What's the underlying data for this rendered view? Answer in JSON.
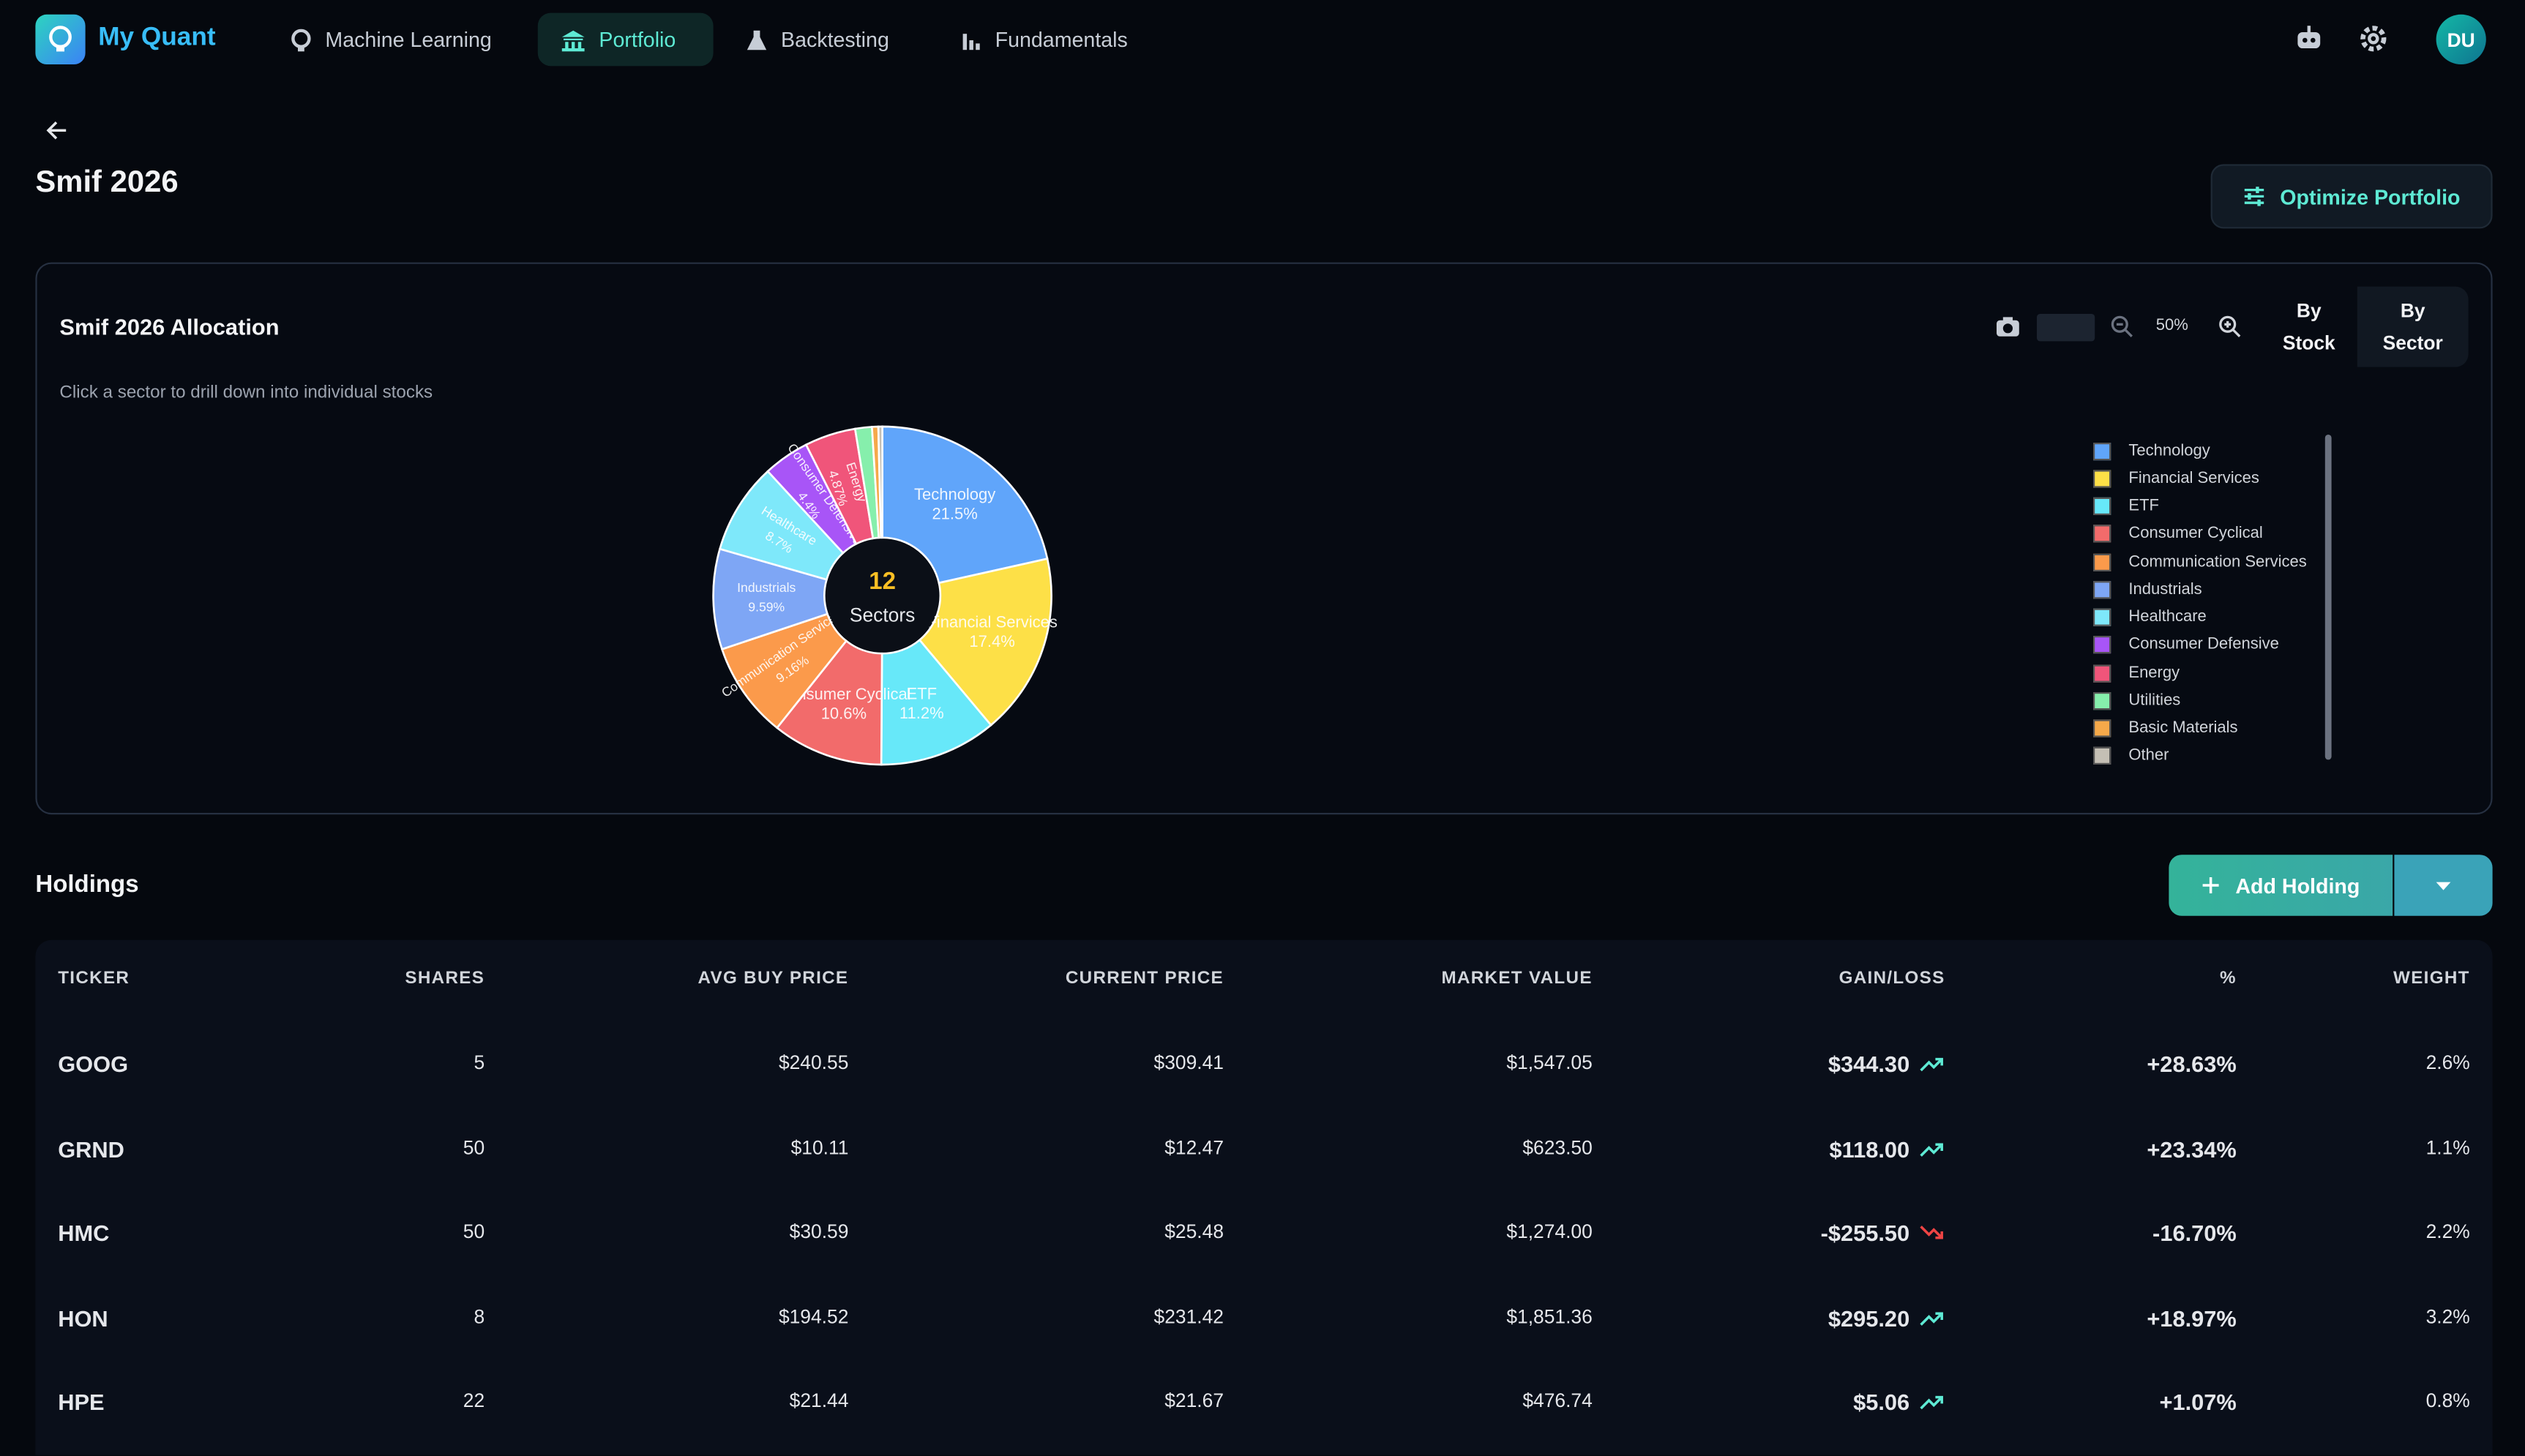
{
  "nav": {
    "brand": "My Quant",
    "items": [
      "Machine Learning",
      "Portfolio",
      "Backtesting",
      "Fundamentals"
    ],
    "avatar": "DU"
  },
  "header": {
    "title": "Smif 2026",
    "button": "Optimize Portfolio"
  },
  "allocation": {
    "title": "Smif 2026 Allocation",
    "hint": "Click a sector to drill down into individual stocks",
    "zoom": "50%",
    "toggles": [
      "By Stock",
      "By Sector"
    ]
  },
  "chart_data": {
    "type": "pie",
    "categories": [
      "Technology",
      "Financial Services",
      "ETF",
      "Consumer Cyclical",
      "Communication Services",
      "Industrials",
      "Healthcare",
      "Consumer Defensive",
      "Energy",
      "Utilities",
      "Basic Materials",
      "Other"
    ],
    "values": [
      21.5,
      17.4,
      11.2,
      10.6,
      9.16,
      9.59,
      8.7,
      4.4,
      4.87,
      1.6,
      0.6,
      0.38
    ],
    "value_labels": [
      "21.5%",
      "17.4%",
      "11.2%",
      "10.6%",
      "9.16%",
      "9.59%",
      "8.7%",
      "4.4%",
      "4.87%",
      null,
      null,
      null
    ],
    "colors": [
      "#60a5fa",
      "#fde047",
      "#67e8f9",
      "#f26b6b",
      "#fb9a4b",
      "#7ea6f5",
      "#7ee8fa",
      "#a855f7",
      "#f0557a",
      "#86efac",
      "#f5a94a",
      "#c4bfb5"
    ],
    "center_value": 12,
    "center_label": "Sectors"
  },
  "holdings": {
    "title": "Holdings",
    "add_button": "Add Holding",
    "columns": [
      "TICKER",
      "SHARES",
      "AVG BUY PRICE",
      "CURRENT PRICE",
      "MARKET VALUE",
      "GAIN/LOSS",
      "%",
      "WEIGHT"
    ],
    "rows": [
      [
        "GOOG",
        "5",
        "$240.55",
        "$309.41",
        "$1,547.05",
        "$344.30",
        "+28.63%",
        "2.6%"
      ],
      [
        "GRND",
        "50",
        "$10.11",
        "$12.47",
        "$623.50",
        "$118.00",
        "+23.34%",
        "1.1%"
      ],
      [
        "HMC",
        "50",
        "$30.59",
        "$25.48",
        "$1,274.00",
        "-$255.50",
        "-16.70%",
        "2.2%"
      ],
      [
        "HON",
        "8",
        "$194.52",
        "$231.42",
        "$1,851.36",
        "$295.20",
        "+18.97%",
        "3.2%"
      ],
      [
        "HPE",
        "22",
        "$21.44",
        "$21.67",
        "$476.74",
        "$5.06",
        "+1.07%",
        "0.8%"
      ]
    ]
  }
}
